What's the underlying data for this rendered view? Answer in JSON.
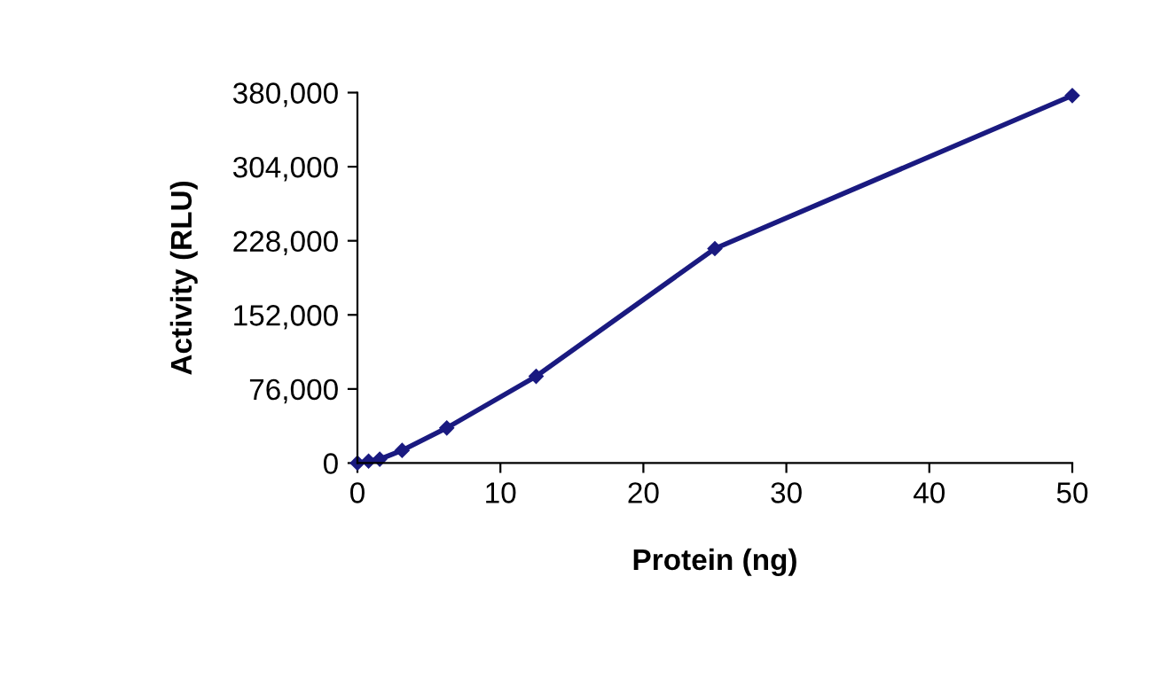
{
  "chart_data": {
    "type": "line",
    "xlabel": "Protein (ng)",
    "ylabel": "Activity (RLU)",
    "x": [
      0,
      0.78,
      1.56,
      3.125,
      6.25,
      12.5,
      25,
      50
    ],
    "series": [
      {
        "color": "#1a1a80",
        "values": [
          0,
          2000,
          4000,
          13000,
          36000,
          89000,
          220000,
          377000
        ]
      }
    ],
    "xlim": [
      0,
      50
    ],
    "xticks": [
      0,
      10,
      20,
      30,
      40,
      50
    ],
    "ylim": [
      0,
      380000
    ],
    "yticks": [
      {
        "value": 0,
        "label": "0"
      },
      {
        "value": 76000,
        "label": "76,000"
      },
      {
        "value": 152000,
        "label": "152,000"
      },
      {
        "value": 228000,
        "label": "228,000"
      },
      {
        "value": 304000,
        "label": "304,000"
      },
      {
        "value": 380000,
        "label": "380,000"
      }
    ],
    "marker": "diamond",
    "line_style": "solid",
    "grid": false,
    "legend": false
  }
}
